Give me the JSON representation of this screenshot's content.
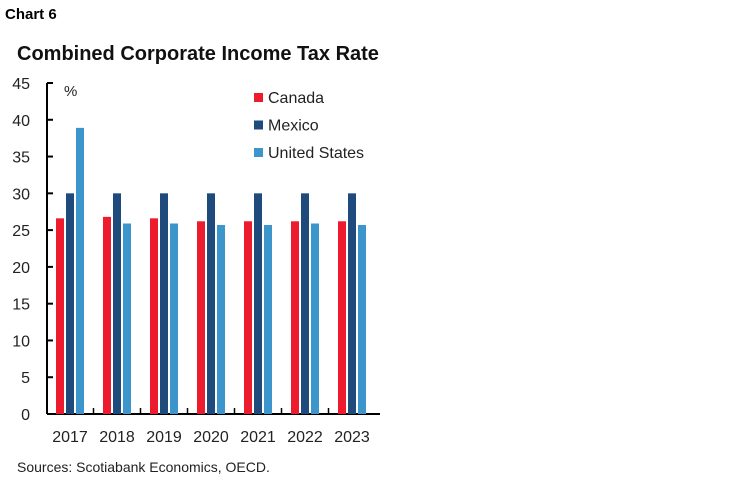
{
  "header": {
    "chart_label": "Chart 6"
  },
  "footer": {
    "source": "Sources: Scotiabank Economics, OECD."
  },
  "chart_data": {
    "type": "bar",
    "title": "Combined Corporate Income Tax Rate",
    "ylabel": "%",
    "xlabel": "",
    "ylim": [
      0,
      45
    ],
    "yticks": [
      0,
      5,
      10,
      15,
      20,
      25,
      30,
      35,
      40,
      45
    ],
    "grid": false,
    "legend_position": "top-right",
    "categories": [
      "2017",
      "2018",
      "2019",
      "2020",
      "2021",
      "2022",
      "2023"
    ],
    "series": [
      {
        "name": "Canada",
        "color": "#ec1c2e",
        "values": [
          26.6,
          26.8,
          26.6,
          26.2,
          26.2,
          26.2,
          26.2
        ]
      },
      {
        "name": "Mexico",
        "color": "#1e4a7c",
        "values": [
          30,
          30,
          30,
          30,
          30,
          30,
          30
        ]
      },
      {
        "name": "United States",
        "color": "#3c96cc",
        "values": [
          38.9,
          25.9,
          25.9,
          25.7,
          25.7,
          25.9,
          25.7
        ]
      }
    ]
  }
}
